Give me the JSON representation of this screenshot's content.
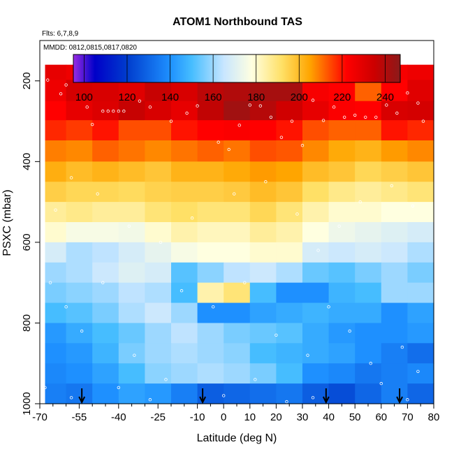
{
  "chart_data": {
    "type": "heatmap",
    "title": "ATOM1 Northbound TAS",
    "flights_note": "Flts: 6,7,8,9",
    "dates_note": "MMDD: 0812,0815,0817,0820",
    "xlabel": "Latitude (deg N)",
    "ylabel": "PSXC (mbar)",
    "xlim": [
      -70,
      80
    ],
    "ylim": [
      1000,
      100
    ],
    "x_ticks": [
      -70,
      -55,
      -40,
      -25,
      -10,
      0,
      10,
      20,
      30,
      40,
      50,
      60,
      70,
      80
    ],
    "y_ticks": [
      200,
      400,
      600,
      800,
      1000
    ],
    "colorbar": {
      "range": [
        95,
        247
      ],
      "ticks": [
        100,
        120,
        140,
        160,
        180,
        200,
        220,
        240
      ],
      "stops": [
        {
          "v": 95,
          "color": "#9a2be2"
        },
        {
          "v": 105,
          "color": "#0000c8"
        },
        {
          "v": 120,
          "color": "#003ccd"
        },
        {
          "v": 140,
          "color": "#1e90ff"
        },
        {
          "v": 150,
          "color": "#46bdff"
        },
        {
          "v": 165,
          "color": "#c8e6ff"
        },
        {
          "v": 178,
          "color": "#ffffe0"
        },
        {
          "v": 192,
          "color": "#ffe066"
        },
        {
          "v": 205,
          "color": "#ffa500"
        },
        {
          "v": 222,
          "color": "#ff0000"
        },
        {
          "v": 235,
          "color": "#cc0000"
        },
        {
          "v": 247,
          "color": "#8b1a1a"
        }
      ]
    },
    "pressure_levels": [
      170,
      225,
      275,
      320,
      375,
      425,
      475,
      525,
      575,
      625,
      675,
      725,
      775,
      825,
      875,
      925,
      975
    ],
    "lat_bins": [
      -65,
      -55,
      -45,
      -35,
      -25,
      -15,
      -5,
      5,
      15,
      25,
      35,
      45,
      55,
      65,
      75
    ],
    "tas_values": [
      [
        228,
        226,
        225,
        226,
        225,
        226,
        224,
        226,
        227,
        229,
        225,
        222,
        221,
        224,
        226
      ],
      [
        226,
        233,
        232,
        230,
        236,
        232,
        238,
        240,
        242,
        242,
        224,
        222,
        212,
        222,
        230
      ],
      [
        222,
        228,
        231,
        236,
        232,
        228,
        237,
        243,
        239,
        234,
        228,
        223,
        222,
        232,
        233
      ],
      [
        218,
        216,
        220,
        214,
        214,
        220,
        222,
        223,
        222,
        220,
        214,
        212,
        212,
        220,
        218
      ],
      [
        209,
        208,
        212,
        210,
        208,
        210,
        212,
        210,
        214,
        213,
        208,
        204,
        202,
        206,
        208
      ],
      [
        203,
        200,
        202,
        200,
        198,
        202,
        202,
        204,
        206,
        205,
        200,
        198,
        194,
        196,
        198
      ],
      [
        196,
        194,
        194,
        193,
        195,
        196,
        196,
        197,
        200,
        198,
        192,
        188,
        186,
        188,
        190
      ],
      [
        186,
        188,
        186,
        186,
        190,
        192,
        190,
        190,
        194,
        190,
        184,
        180,
        180,
        178,
        178
      ],
      [
        180,
        176,
        176,
        175,
        180,
        184,
        182,
        182,
        186,
        184,
        178,
        174,
        172,
        170,
        168
      ],
      [
        168,
        162,
        164,
        168,
        172,
        176,
        178,
        178,
        180,
        180,
        168,
        166,
        168,
        166,
        162
      ],
      [
        160,
        162,
        166,
        170,
        168,
        152,
        158,
        164,
        166,
        162,
        154,
        152,
        156,
        160,
        156
      ],
      [
        156,
        158,
        160,
        164,
        162,
        150,
        184,
        190,
        150,
        140,
        140,
        148,
        150,
        160,
        160
      ],
      [
        150,
        152,
        156,
        162,
        166,
        160,
        140,
        140,
        144,
        146,
        148,
        146,
        146,
        140,
        144
      ],
      [
        142,
        146,
        150,
        154,
        160,
        164,
        160,
        156,
        154,
        152,
        146,
        142,
        140,
        140,
        142
      ],
      [
        140,
        142,
        148,
        156,
        160,
        162,
        160,
        158,
        150,
        148,
        146,
        144,
        140,
        136,
        132
      ],
      [
        138,
        140,
        144,
        150,
        158,
        160,
        162,
        160,
        156,
        150,
        140,
        138,
        134,
        136,
        138
      ],
      [
        136,
        134,
        140,
        144,
        142,
        136,
        128,
        130,
        132,
        134,
        128,
        124,
        130,
        136,
        130
      ]
    ],
    "markers_lat": [
      -54,
      -8,
      39,
      67
    ],
    "scatter_points": [
      {
        "lat": -67,
        "p": 198
      },
      {
        "lat": -62,
        "p": 232
      },
      {
        "lat": -60,
        "p": 210
      },
      {
        "lat": -52,
        "p": 265
      },
      {
        "lat": -50,
        "p": 308
      },
      {
        "lat": -46,
        "p": 275
      },
      {
        "lat": -44,
        "p": 275
      },
      {
        "lat": -42,
        "p": 275
      },
      {
        "lat": -40,
        "p": 275
      },
      {
        "lat": -38,
        "p": 275
      },
      {
        "lat": -32,
        "p": 250
      },
      {
        "lat": -28,
        "p": 265
      },
      {
        "lat": -20,
        "p": 300
      },
      {
        "lat": -14,
        "p": 280
      },
      {
        "lat": -10,
        "p": 262
      },
      {
        "lat": -2,
        "p": 352
      },
      {
        "lat": 2,
        "p": 370
      },
      {
        "lat": 6,
        "p": 310
      },
      {
        "lat": 10,
        "p": 260
      },
      {
        "lat": 14,
        "p": 262
      },
      {
        "lat": 18,
        "p": 290
      },
      {
        "lat": 22,
        "p": 340
      },
      {
        "lat": 26,
        "p": 300
      },
      {
        "lat": 30,
        "p": 360
      },
      {
        "lat": 34,
        "p": 248
      },
      {
        "lat": 38,
        "p": 298
      },
      {
        "lat": 42,
        "p": 265
      },
      {
        "lat": 46,
        "p": 290
      },
      {
        "lat": 50,
        "p": 285
      },
      {
        "lat": 54,
        "p": 290
      },
      {
        "lat": 58,
        "p": 290
      },
      {
        "lat": 62,
        "p": 260
      },
      {
        "lat": 66,
        "p": 280
      },
      {
        "lat": 70,
        "p": 230
      },
      {
        "lat": 74,
        "p": 255
      },
      {
        "lat": 76,
        "p": 300
      },
      {
        "lat": -64,
        "p": 520
      },
      {
        "lat": -58,
        "p": 440
      },
      {
        "lat": -48,
        "p": 480
      },
      {
        "lat": -36,
        "p": 560
      },
      {
        "lat": -24,
        "p": 600
      },
      {
        "lat": -12,
        "p": 540
      },
      {
        "lat": 4,
        "p": 480
      },
      {
        "lat": 16,
        "p": 450
      },
      {
        "lat": 28,
        "p": 530
      },
      {
        "lat": 36,
        "p": 620
      },
      {
        "lat": 44,
        "p": 560
      },
      {
        "lat": 52,
        "p": 500
      },
      {
        "lat": 64,
        "p": 460
      },
      {
        "lat": 72,
        "p": 510
      },
      {
        "lat": -66,
        "p": 700
      },
      {
        "lat": -60,
        "p": 760
      },
      {
        "lat": -54,
        "p": 820
      },
      {
        "lat": -46,
        "p": 700
      },
      {
        "lat": -34,
        "p": 880
      },
      {
        "lat": -22,
        "p": 940
      },
      {
        "lat": -16,
        "p": 720
      },
      {
        "lat": -4,
        "p": 760
      },
      {
        "lat": 8,
        "p": 700
      },
      {
        "lat": 20,
        "p": 830
      },
      {
        "lat": 32,
        "p": 880
      },
      {
        "lat": 40,
        "p": 760
      },
      {
        "lat": 48,
        "p": 820
      },
      {
        "lat": 56,
        "p": 900
      },
      {
        "lat": 68,
        "p": 860
      },
      {
        "lat": 74,
        "p": 920
      },
      {
        "lat": -68,
        "p": 960
      },
      {
        "lat": -58,
        "p": 985
      },
      {
        "lat": -40,
        "p": 960
      },
      {
        "lat": -28,
        "p": 990
      },
      {
        "lat": 0,
        "p": 980
      },
      {
        "lat": 12,
        "p": 940
      },
      {
        "lat": 24,
        "p": 995
      },
      {
        "lat": 34,
        "p": 985
      },
      {
        "lat": 60,
        "p": 950
      },
      {
        "lat": 70,
        "p": 990
      }
    ]
  }
}
